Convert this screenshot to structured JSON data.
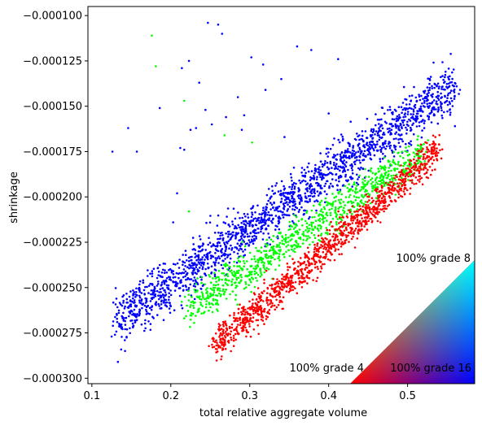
{
  "chart_data": {
    "type": "scatter",
    "title": "",
    "xlabel": "total relative aggregate volume",
    "ylabel": "shrinkage",
    "xlim": [
      0.095,
      0.585
    ],
    "ylim": [
      -0.000303,
      -9.5e-05
    ],
    "x_ticks": [
      0.1,
      0.2,
      0.3,
      0.4,
      0.5
    ],
    "x_tick_labels": [
      "0.1",
      "0.2",
      "0.3",
      "0.4",
      "0.5"
    ],
    "y_ticks": [
      -0.0001,
      -0.000125,
      -0.00015,
      -0.000175,
      -0.0002,
      -0.000225,
      -0.00025,
      -0.000275,
      -0.0003
    ],
    "y_tick_labels": [
      "−0.000100",
      "−0.000125",
      "−0.000150",
      "−0.000175",
      "−0.000200",
      "−0.000225",
      "−0.000250",
      "−0.000275",
      "−0.000300"
    ],
    "grid": false,
    "legend": "none",
    "color_legend": {
      "type": "ternary-triangle",
      "placement": "bottom-right",
      "labels": [
        "100% grade 8",
        "100% grade 4",
        "100% grade 16"
      ],
      "colors": [
        "#00ff00",
        "#ff0000",
        "#0000ff"
      ]
    },
    "clusters": [
      {
        "color": "#0000ff",
        "x_range": [
          0.13,
          0.56
        ],
        "y_start": -0.000268,
        "slope": 0.0003,
        "spread": 1.2e-05,
        "count": 1800
      },
      {
        "color": "#00ff00",
        "x_range": [
          0.22,
          0.52
        ],
        "y_start": -0.000262,
        "slope": 0.00029,
        "spread": 9e-06,
        "count": 900
      },
      {
        "color": "#ff0000",
        "x_range": [
          0.255,
          0.54
        ],
        "y_start": -0.000282,
        "slope": 0.00038,
        "spread": 8e-06,
        "count": 1200
      }
    ],
    "outlier_points": [
      {
        "x": 0.176,
        "y": -0.000111,
        "c": "#00ff00"
      },
      {
        "x": 0.181,
        "y": -0.000128,
        "c": "#00ff00"
      },
      {
        "x": 0.247,
        "y": -0.000104,
        "c": "#0000ff"
      },
      {
        "x": 0.26,
        "y": -0.000105,
        "c": "#0000ff"
      },
      {
        "x": 0.265,
        "y": -0.00011,
        "c": "#0000ff"
      },
      {
        "x": 0.214,
        "y": -0.000129,
        "c": "#0000ff"
      },
      {
        "x": 0.223,
        "y": -0.000125,
        "c": "#0000ff"
      },
      {
        "x": 0.236,
        "y": -0.000137,
        "c": "#0000ff"
      },
      {
        "x": 0.302,
        "y": -0.000123,
        "c": "#0000ff"
      },
      {
        "x": 0.317,
        "y": -0.000127,
        "c": "#0000ff"
      },
      {
        "x": 0.32,
        "y": -0.000141,
        "c": "#0000ff"
      },
      {
        "x": 0.36,
        "y": -0.000117,
        "c": "#0000ff"
      },
      {
        "x": 0.378,
        "y": -0.000119,
        "c": "#0000ff"
      },
      {
        "x": 0.412,
        "y": -0.000124,
        "c": "#0000ff"
      },
      {
        "x": 0.34,
        "y": -0.000135,
        "c": "#0000ff"
      },
      {
        "x": 0.217,
        "y": -0.000147,
        "c": "#00ff00"
      },
      {
        "x": 0.186,
        "y": -0.000151,
        "c": "#0000ff"
      },
      {
        "x": 0.244,
        "y": -0.000152,
        "c": "#0000ff"
      },
      {
        "x": 0.27,
        "y": -0.000156,
        "c": "#0000ff"
      },
      {
        "x": 0.285,
        "y": -0.000145,
        "c": "#0000ff"
      },
      {
        "x": 0.293,
        "y": -0.000155,
        "c": "#0000ff"
      },
      {
        "x": 0.146,
        "y": -0.000162,
        "c": "#0000ff"
      },
      {
        "x": 0.225,
        "y": -0.000163,
        "c": "#0000ff"
      },
      {
        "x": 0.232,
        "y": -0.000162,
        "c": "#0000ff"
      },
      {
        "x": 0.252,
        "y": -0.00016,
        "c": "#0000ff"
      },
      {
        "x": 0.268,
        "y": -0.000166,
        "c": "#00ff00"
      },
      {
        "x": 0.303,
        "y": -0.00017,
        "c": "#00ff00"
      },
      {
        "x": 0.212,
        "y": -0.000173,
        "c": "#0000ff"
      },
      {
        "x": 0.29,
        "y": -0.000163,
        "c": "#0000ff"
      },
      {
        "x": 0.344,
        "y": -0.000167,
        "c": "#0000ff"
      },
      {
        "x": 0.126,
        "y": -0.000175,
        "c": "#0000ff"
      },
      {
        "x": 0.157,
        "y": -0.000175,
        "c": "#0000ff"
      },
      {
        "x": 0.217,
        "y": -0.000174,
        "c": "#0000ff"
      },
      {
        "x": 0.4,
        "y": -0.000154,
        "c": "#0000ff"
      },
      {
        "x": 0.56,
        "y": -0.000161,
        "c": "#0000ff"
      },
      {
        "x": 0.223,
        "y": -0.000208,
        "c": "#00ff00"
      },
      {
        "x": 0.203,
        "y": -0.000214,
        "c": "#0000ff"
      },
      {
        "x": 0.208,
        "y": -0.000198,
        "c": "#0000ff"
      },
      {
        "x": 0.142,
        "y": -0.000285,
        "c": "#0000ff"
      },
      {
        "x": 0.133,
        "y": -0.000291,
        "c": "#0000ff"
      },
      {
        "x": 0.125,
        "y": -0.000277,
        "c": "#0000ff"
      },
      {
        "x": 0.163,
        "y": -0.000253,
        "c": "#0000ff"
      }
    ]
  }
}
